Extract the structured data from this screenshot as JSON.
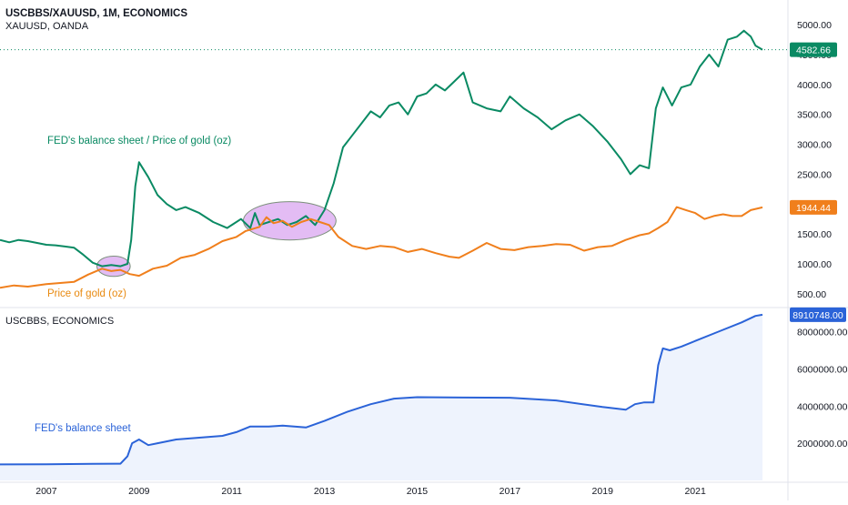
{
  "header": {
    "main_title": "USCBBS/XAUUSD, 1M, ECONOMICS",
    "sub_title": "XAUUSD, OANDA",
    "lower_title": "USCBBS, ECONOMICS"
  },
  "annotations": {
    "ratio_label": "FED's balance sheet / Price of gold (oz)",
    "gold_label": "Price of gold (oz)",
    "fed_label": "FED's balance sheet"
  },
  "colors": {
    "ratio": "#0a8a63",
    "gold": "#f07f1c",
    "fed": "#2b63d8",
    "fed_fill": "#eef3fd",
    "highlight_fill": "#d9a6f0",
    "highlight_stroke": "#7b8f7b",
    "last_ratio_badge": "#0a8a63",
    "last_gold_badge": "#f07f1c",
    "last_fed_badge": "#2b63d8"
  },
  "chart_data": [
    {
      "type": "line",
      "panel": "upper",
      "ylim": [
        300,
        5200
      ],
      "yticks": [
        "5000.00",
        "4500.00",
        "4000.00",
        "3500.00",
        "3000.00",
        "2500.00",
        "2000.00",
        "1500.00",
        "1000.00",
        "500.00"
      ],
      "ytick_values": [
        5000,
        4500,
        4000,
        3500,
        3000,
        2500,
        2000,
        1500,
        1000,
        500
      ],
      "last_values": {
        "ratio": "4582.66",
        "gold": "1944.44"
      },
      "last_numeric": {
        "ratio": 4582.66,
        "gold": 1944.44
      },
      "series": [
        {
          "key": "ratio",
          "x": [
            2006.0,
            2006.2,
            2006.4,
            2006.6,
            2006.8,
            2007.0,
            2007.2,
            2007.4,
            2007.6,
            2007.8,
            2008.0,
            2008.2,
            2008.4,
            2008.6,
            2008.75,
            2008.83,
            2008.92,
            2009.0,
            2009.2,
            2009.4,
            2009.6,
            2009.8,
            2010.0,
            2010.3,
            2010.6,
            2010.9,
            2011.2,
            2011.4,
            2011.5,
            2011.6,
            2011.8,
            2012.0,
            2012.2,
            2012.4,
            2012.6,
            2012.8,
            2013.0,
            2013.2,
            2013.4,
            2013.6,
            2013.8,
            2014.0,
            2014.2,
            2014.4,
            2014.6,
            2014.8,
            2015.0,
            2015.2,
            2015.4,
            2015.6,
            2015.8,
            2016.0,
            2016.2,
            2016.5,
            2016.8,
            2017.0,
            2017.3,
            2017.6,
            2017.9,
            2018.2,
            2018.5,
            2018.8,
            2019.1,
            2019.4,
            2019.6,
            2019.8,
            2020.0,
            2020.15,
            2020.3,
            2020.5,
            2020.7,
            2020.9,
            2021.1,
            2021.3,
            2021.5,
            2021.7,
            2021.9,
            2022.05,
            2022.2,
            2022.3,
            2022.45
          ],
          "y": [
            1400,
            1360,
            1400,
            1380,
            1350,
            1320,
            1310,
            1290,
            1270,
            1150,
            1020,
            960,
            980,
            960,
            1000,
            1400,
            2300,
            2700,
            2450,
            2150,
            2000,
            1900,
            1950,
            1850,
            1700,
            1600,
            1750,
            1600,
            1850,
            1650,
            1700,
            1750,
            1650,
            1700,
            1800,
            1650,
            1900,
            2350,
            2950,
            3150,
            3350,
            3550,
            3450,
            3650,
            3700,
            3500,
            3800,
            3850,
            4000,
            3900,
            4050,
            4200,
            3700,
            3600,
            3550,
            3800,
            3600,
            3450,
            3250,
            3400,
            3500,
            3300,
            3050,
            2750,
            2500,
            2650,
            2600,
            3600,
            3950,
            3650,
            3950,
            4000,
            4300,
            4500,
            4300,
            4750,
            4800,
            4900,
            4800,
            4650,
            4582.66
          ]
        },
        {
          "key": "gold",
          "x": [
            2006.0,
            2006.3,
            2006.6,
            2007.0,
            2007.3,
            2007.6,
            2007.9,
            2008.2,
            2008.4,
            2008.6,
            2008.8,
            2009.0,
            2009.3,
            2009.6,
            2009.9,
            2010.2,
            2010.5,
            2010.8,
            2011.1,
            2011.3,
            2011.6,
            2011.75,
            2011.9,
            2012.1,
            2012.3,
            2012.5,
            2012.7,
            2012.9,
            2013.1,
            2013.3,
            2013.6,
            2013.9,
            2014.2,
            2014.5,
            2014.8,
            2015.1,
            2015.4,
            2015.7,
            2015.9,
            2016.2,
            2016.5,
            2016.8,
            2017.1,
            2017.4,
            2017.7,
            2018.0,
            2018.3,
            2018.6,
            2018.9,
            2019.2,
            2019.5,
            2019.8,
            2020.0,
            2020.2,
            2020.4,
            2020.6,
            2020.8,
            2021.0,
            2021.2,
            2021.4,
            2021.6,
            2021.8,
            2022.0,
            2022.2,
            2022.45
          ],
          "y": [
            600,
            640,
            620,
            660,
            680,
            700,
            820,
            920,
            880,
            900,
            830,
            800,
            920,
            970,
            1100,
            1150,
            1250,
            1380,
            1450,
            1550,
            1620,
            1780,
            1680,
            1720,
            1620,
            1700,
            1750,
            1700,
            1650,
            1450,
            1300,
            1250,
            1300,
            1280,
            1200,
            1250,
            1180,
            1120,
            1100,
            1220,
            1350,
            1250,
            1230,
            1280,
            1300,
            1330,
            1320,
            1220,
            1280,
            1300,
            1400,
            1480,
            1510,
            1600,
            1700,
            1950,
            1900,
            1850,
            1750,
            1800,
            1830,
            1800,
            1800,
            1900,
            1944.44
          ]
        }
      ]
    },
    {
      "type": "area",
      "panel": "lower",
      "ylim": [
        0,
        9200000
      ],
      "yticks": [
        "8000000.00",
        "6000000.00",
        "4000000.00",
        "2000000.00"
      ],
      "ytick_values": [
        8000000,
        6000000,
        4000000,
        2000000
      ],
      "last_values": {
        "fed": "8910748.00"
      },
      "last_numeric": {
        "fed": 8910748
      },
      "series": [
        {
          "key": "fed",
          "x": [
            2006.0,
            2007.0,
            2008.0,
            2008.6,
            2008.75,
            2008.85,
            2009.0,
            2009.2,
            2009.4,
            2009.8,
            2010.3,
            2010.8,
            2011.1,
            2011.4,
            2011.8,
            2012.1,
            2012.6,
            2013.0,
            2013.5,
            2014.0,
            2014.5,
            2015.0,
            2016.0,
            2017.0,
            2018.0,
            2019.0,
            2019.5,
            2019.7,
            2019.9,
            2020.1,
            2020.2,
            2020.3,
            2020.45,
            2020.7,
            2021.0,
            2021.5,
            2022.0,
            2022.3,
            2022.45
          ],
          "y": [
            860000,
            870000,
            890000,
            900000,
            1300000,
            2000000,
            2200000,
            1900000,
            2000000,
            2200000,
            2300000,
            2400000,
            2600000,
            2900000,
            2900000,
            2950000,
            2850000,
            3200000,
            3700000,
            4100000,
            4400000,
            4480000,
            4460000,
            4450000,
            4300000,
            3950000,
            3800000,
            4100000,
            4200000,
            4200000,
            6200000,
            7100000,
            7000000,
            7200000,
            7500000,
            8000000,
            8500000,
            8850000,
            8910748
          ]
        }
      ]
    }
  ],
  "x_axis": {
    "ticks": [
      "2007",
      "2009",
      "2011",
      "2013",
      "2015",
      "2017",
      "2019",
      "2021"
    ],
    "tick_values": [
      2007,
      2009,
      2011,
      2013,
      2015,
      2017,
      2019,
      2021
    ],
    "xlim": [
      2006.0,
      2023.0
    ]
  },
  "highlights": [
    {
      "name": "highlight-2008-crossover",
      "x_center": 2008.45,
      "y_center": 960,
      "x_half_width": 0.36,
      "y_half_height": 170
    },
    {
      "name": "highlight-2011-2013-overlap",
      "x_center": 2012.25,
      "y_center": 1720,
      "x_half_width": 1.0,
      "y_half_height": 320
    }
  ]
}
